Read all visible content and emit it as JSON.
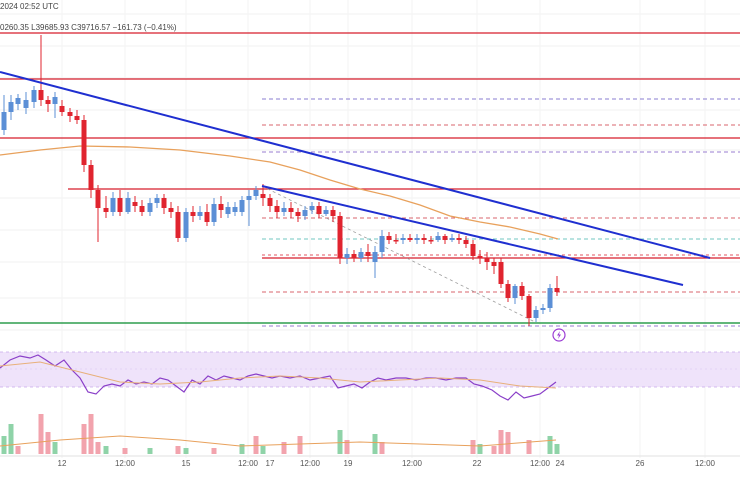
{
  "header": {
    "time_text": "2024 02:52 UTC",
    "ohlc_text": "0260.35  L39685.93  C39716.57  −161.73 (−0.41%)"
  },
  "chart_data": {
    "type": "candlestick",
    "x_ticks": [
      "12",
      "12:00",
      "15",
      "12:00",
      "17",
      "12:00",
      "19",
      "12:00",
      "22",
      "12:00",
      "24",
      "26",
      "12:00"
    ],
    "colors": {
      "up": "#5b8fd6",
      "down": "#e0242f",
      "resistance": "#d61f2c",
      "support": "#2e9e4f",
      "trendline": "#1f2fd0",
      "ema": "#e8a15c",
      "rsi": "#8a3fc8",
      "rsi_band": "#efe3fa",
      "vol_up": "#8fd3a8",
      "vol_down": "#f2a3ad"
    },
    "icons": [
      "lightning-icon"
    ]
  }
}
